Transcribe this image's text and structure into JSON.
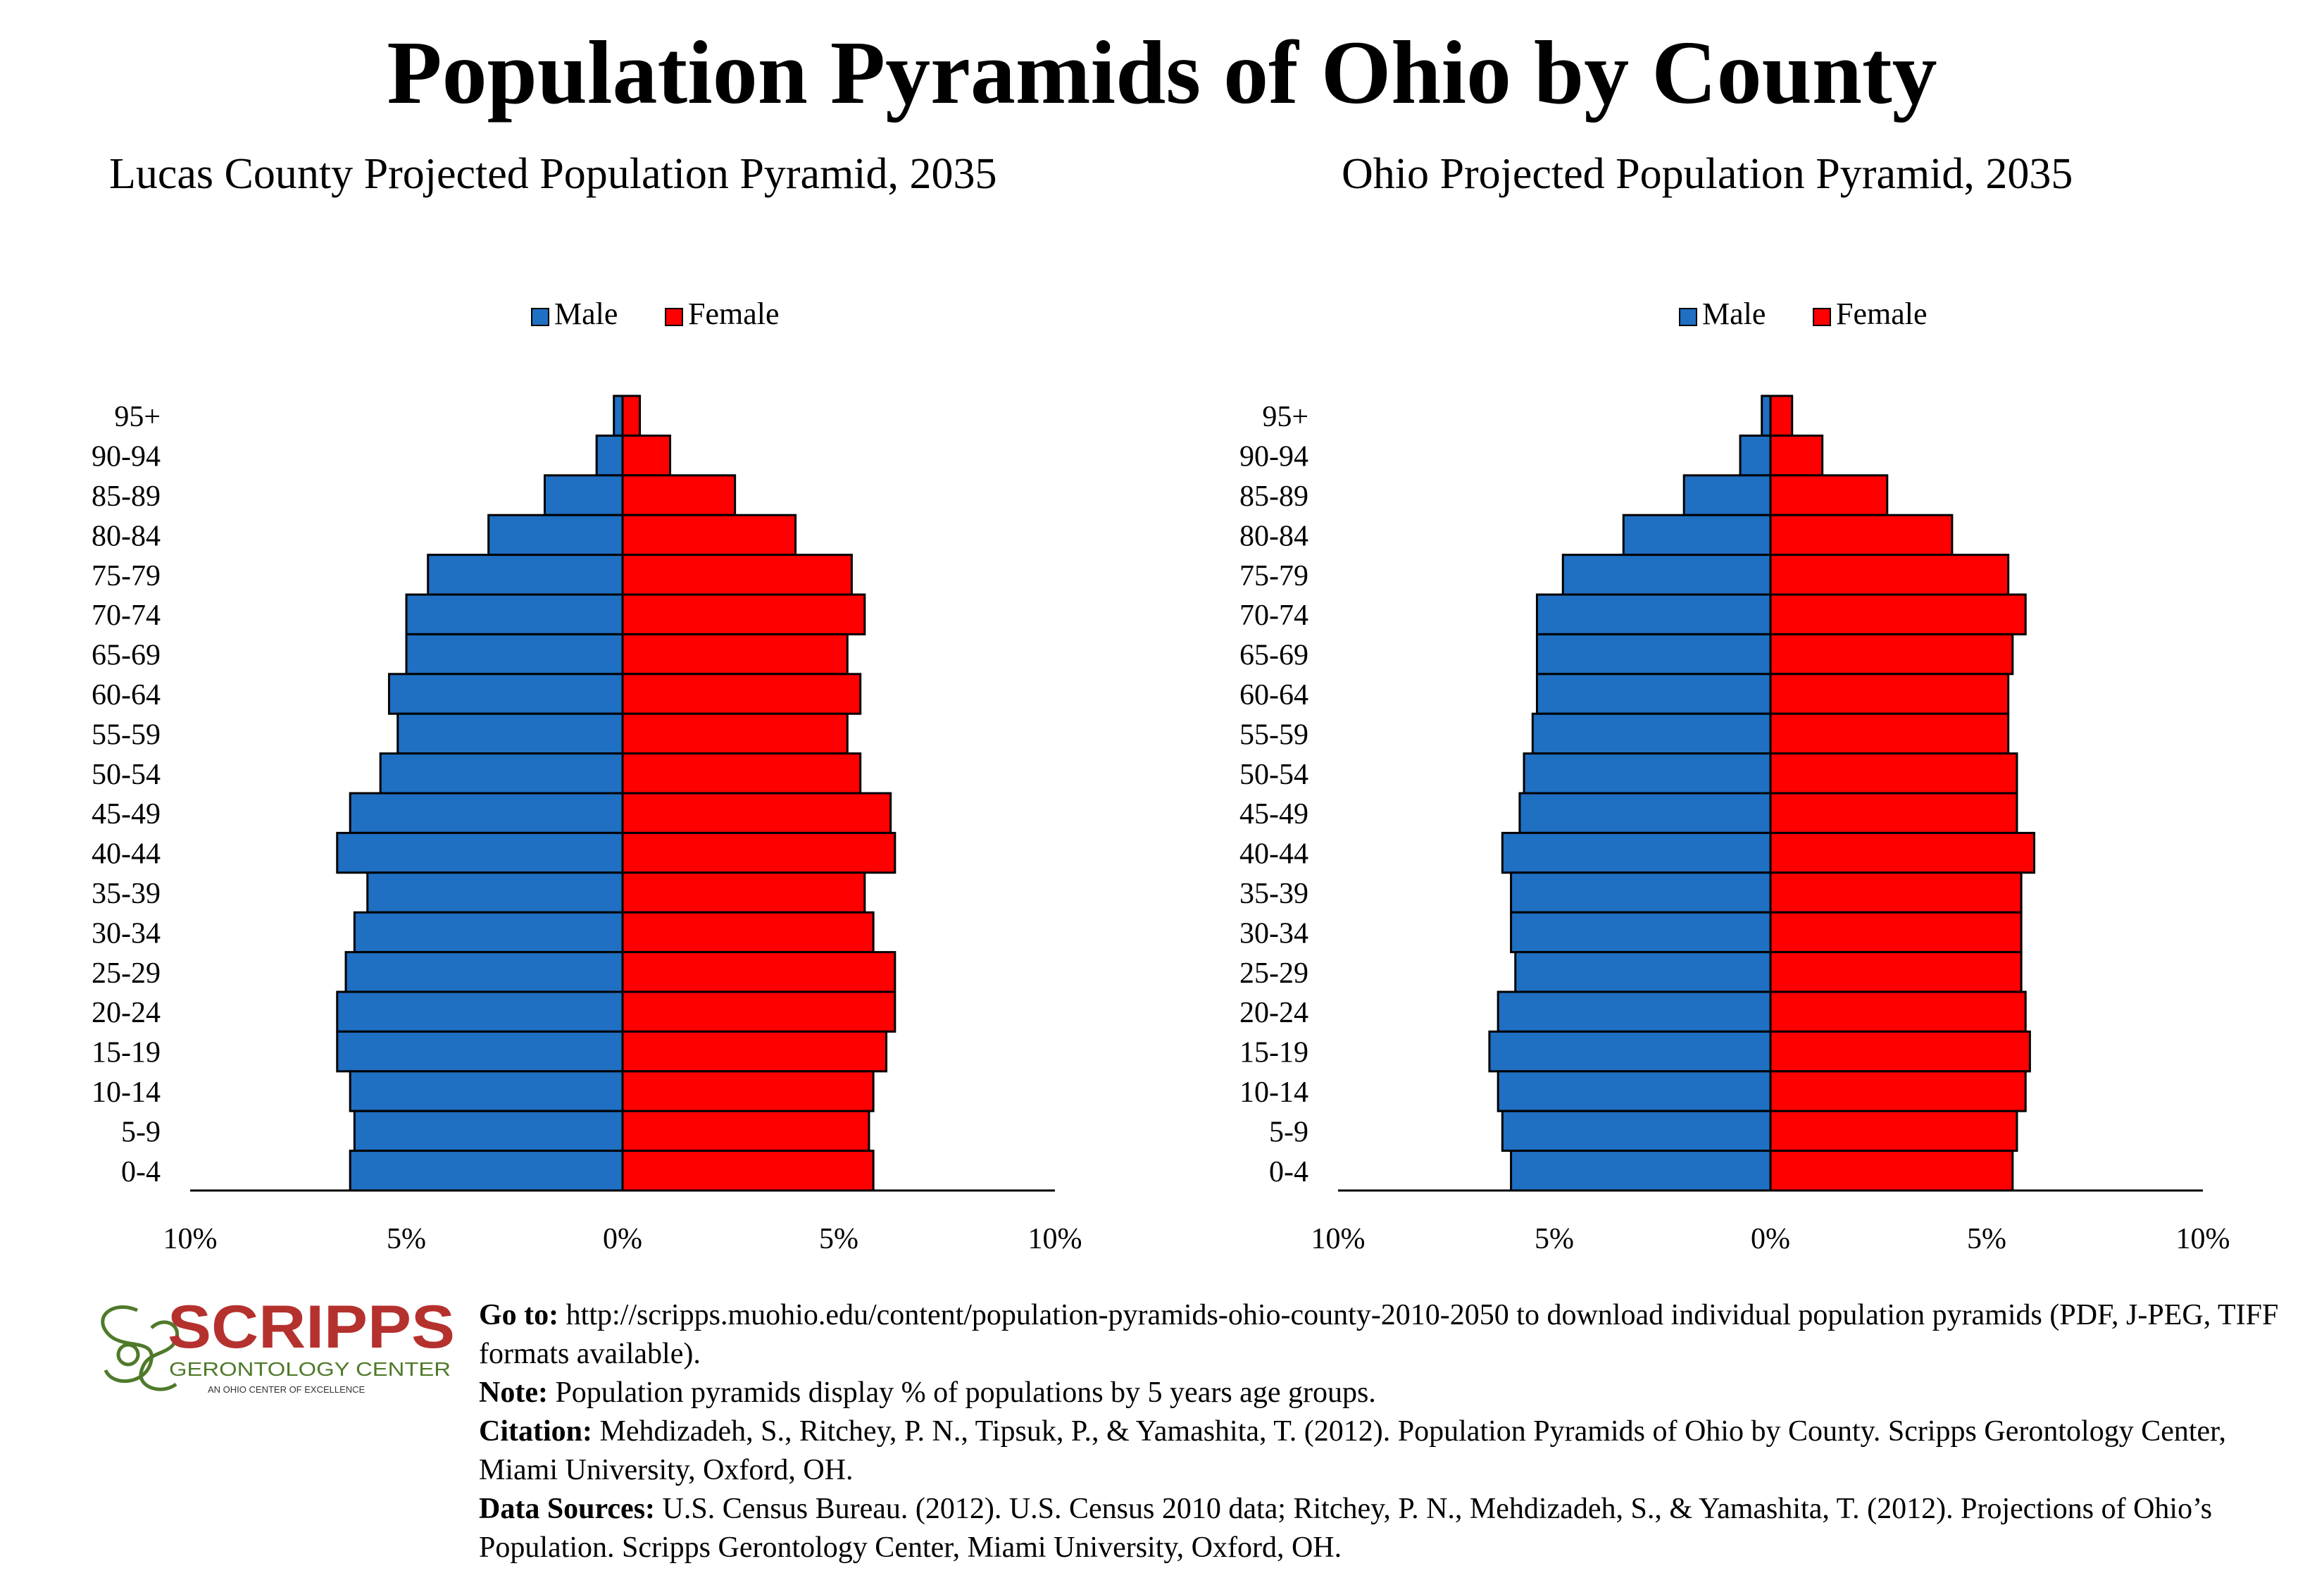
{
  "title": "Population Pyramids of Ohio by County",
  "colors": {
    "male": "#1f6fc2",
    "female": "#ff0000",
    "logo_red": "#b5312e",
    "logo_green": "#4f7a2a"
  },
  "chart_data": [
    {
      "type": "bar",
      "title": "Lucas County Projected Population Pyramid, 2035",
      "legend": [
        "Male",
        "Female"
      ],
      "legend_position": "top",
      "categories": [
        "95+",
        "90-94",
        "85-89",
        "80-84",
        "75-79",
        "70-74",
        "65-69",
        "60-64",
        "55-59",
        "50-54",
        "45-49",
        "40-44",
        "35-39",
        "30-34",
        "25-29",
        "20-24",
        "15-19",
        "10-14",
        "5-9",
        "0-4"
      ],
      "series": [
        {
          "name": "Male",
          "values": [
            0.2,
            0.6,
            1.8,
            3.1,
            4.5,
            5.0,
            5.0,
            5.4,
            5.2,
            5.6,
            6.3,
            6.6,
            5.9,
            6.2,
            6.4,
            6.6,
            6.6,
            6.3,
            6.2,
            6.3
          ]
        },
        {
          "name": "Female",
          "values": [
            0.4,
            1.1,
            2.6,
            4.0,
            5.3,
            5.6,
            5.2,
            5.5,
            5.2,
            5.5,
            6.2,
            6.3,
            5.6,
            5.8,
            6.3,
            6.3,
            6.1,
            5.8,
            5.7,
            5.8
          ]
        }
      ],
      "xlim": [
        -10,
        10
      ],
      "xticks": [
        "10%",
        "5%",
        "0%",
        "5%",
        "10%"
      ]
    },
    {
      "type": "bar",
      "title": "Ohio Projected Population Pyramid, 2035",
      "legend": [
        "Male",
        "Female"
      ],
      "legend_position": "top",
      "categories": [
        "95+",
        "90-94",
        "85-89",
        "80-84",
        "75-79",
        "70-74",
        "65-69",
        "60-64",
        "55-59",
        "50-54",
        "45-49",
        "40-44",
        "35-39",
        "30-34",
        "25-29",
        "20-24",
        "15-19",
        "10-14",
        "5-9",
        "0-4"
      ],
      "series": [
        {
          "name": "Male",
          "values": [
            0.2,
            0.7,
            2.0,
            3.4,
            4.8,
            5.4,
            5.4,
            5.4,
            5.5,
            5.7,
            5.8,
            6.2,
            6.0,
            6.0,
            5.9,
            6.3,
            6.5,
            6.3,
            6.2,
            6.0
          ]
        },
        {
          "name": "Female",
          "values": [
            0.5,
            1.2,
            2.7,
            4.2,
            5.5,
            5.9,
            5.6,
            5.5,
            5.5,
            5.7,
            5.7,
            6.1,
            5.8,
            5.8,
            5.8,
            5.9,
            6.0,
            5.9,
            5.7,
            5.6
          ]
        }
      ],
      "xlim": [
        -10,
        10
      ],
      "xticks": [
        "10%",
        "5%",
        "0%",
        "5%",
        "10%"
      ]
    }
  ],
  "logo": {
    "name": "SCRIPPS",
    "subtitle": "GERONTOLOGY CENTER",
    "tagline": "AN OHIO CENTER OF EXCELLENCE"
  },
  "footer": {
    "goto_label": "Go to:",
    "goto_text": " http://scripps.muohio.edu/content/population-pyramids-ohio-county-2010-2050 to download individual population pyramids (PDF, J-PEG, TIFF formats available).",
    "note_label": "Note:",
    "note_text": " Population pyramids display % of populations by 5 years age groups.",
    "citation_label": "Citation:",
    "citation_text": " Mehdizadeh, S., Ritchey, P. N., Tipsuk, P., & Yamashita, T. (2012). Population Pyramids of Ohio by County. Scripps Gerontology Center, Miami University, Oxford, OH.",
    "sources_label": "Data Sources:",
    "sources_text": " U.S. Census Bureau. (2012). U.S. Census 2010 data; Ritchey, P. N., Mehdizadeh, S., & Yamashita, T. (2012). Projections of Ohio’s Population. Scripps Gerontology Center, Miami University, Oxford, OH."
  }
}
